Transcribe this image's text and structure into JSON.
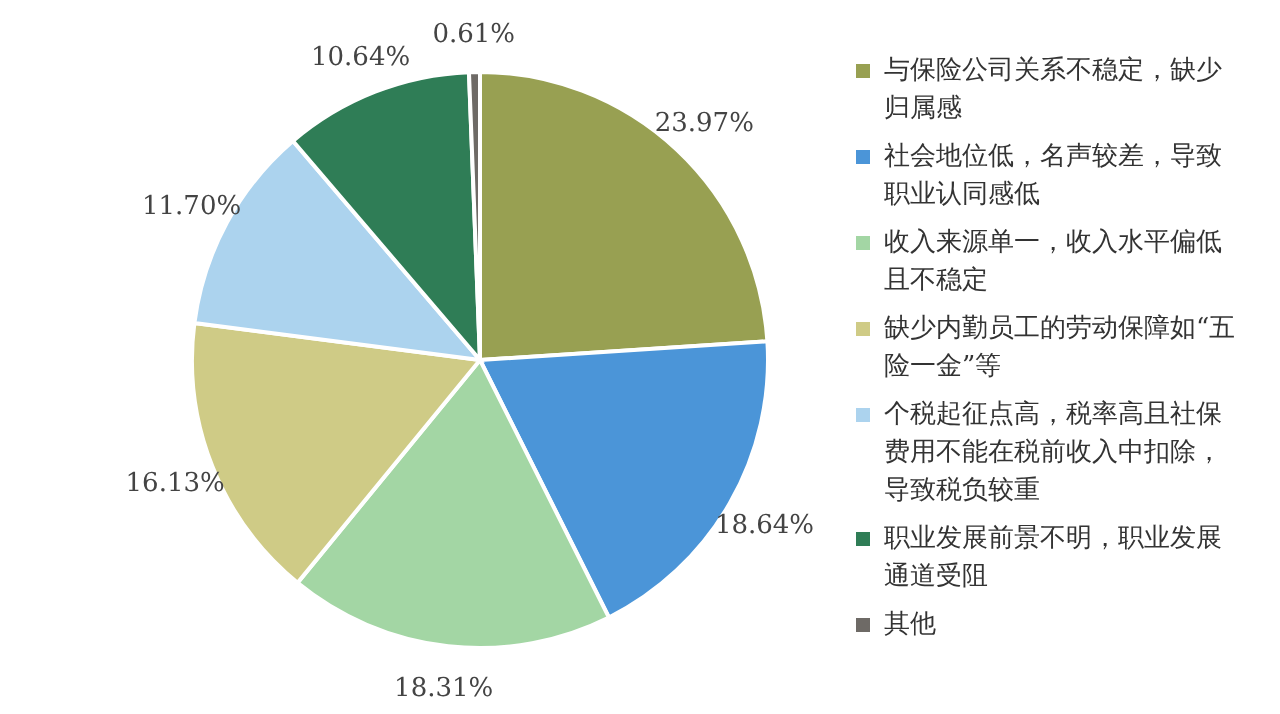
{
  "chart_data": {
    "type": "pie",
    "categories": [
      "与保险公司关系不稳定，缺少归属感",
      "社会地位低，名声较差，导致职业认同感低",
      "收入来源单一，收入水平偏低且不稳定",
      "缺少内勤员工的劳动保障如“五险一金”等",
      "个税起征点高，税率高且社保费用不能在税前收入中扣除，导致税负较重",
      "职业发展前景不明，职业发展通道受阻",
      "其他"
    ],
    "values": [
      23.97,
      18.64,
      18.31,
      16.13,
      11.7,
      10.64,
      0.61
    ],
    "value_labels": [
      "23.97%",
      "18.64%",
      "18.31%",
      "16.13%",
      "11.70%",
      "10.64%",
      "0.61%"
    ],
    "colors": [
      "#98a052",
      "#4b95d8",
      "#a3d6a4",
      "#cfcb86",
      "#acd3ee",
      "#2f7d56",
      "#6e6a66"
    ],
    "legend": "right"
  }
}
